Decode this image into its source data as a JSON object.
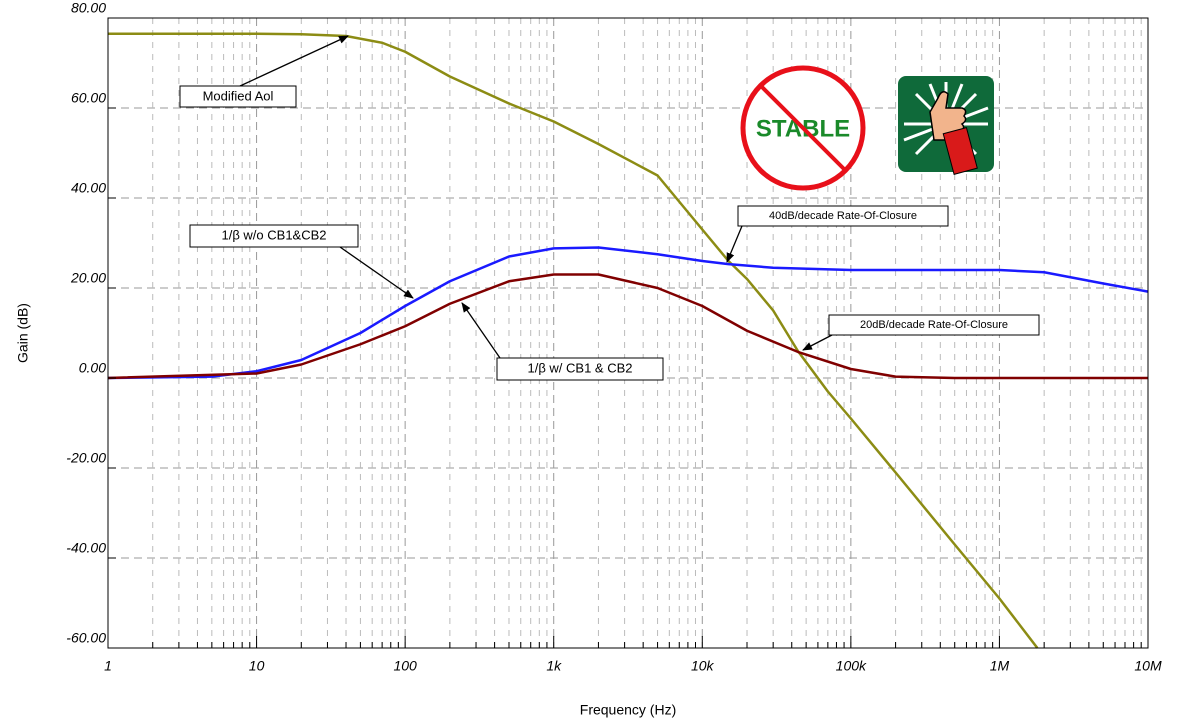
{
  "chart_data": {
    "type": "line",
    "y_label": "Gain (dB)",
    "x_label": "Frequency (Hz)",
    "log_x": true,
    "grid": true,
    "xlim": [
      1,
      10000000
    ],
    "xticks": [
      1,
      10,
      100,
      {
        "value": 1000,
        "label": "1k"
      },
      {
        "value": 10000,
        "label": "10k"
      },
      {
        "value": 100000,
        "label": "100k"
      },
      {
        "value": 1000000,
        "label": "1M"
      },
      {
        "value": 10000000,
        "label": "10M"
      }
    ],
    "ylim": [
      -60,
      80
    ],
    "yticks": [
      {
        "value": -60,
        "label": "-60.00"
      },
      {
        "value": -40,
        "label": "-40.00"
      },
      {
        "value": -20,
        "label": "-20.00"
      },
      {
        "value": 0,
        "label": "0.00"
      },
      {
        "value": 20,
        "label": "20.00"
      },
      {
        "value": 40,
        "label": "40.00"
      },
      {
        "value": 60,
        "label": "60.00"
      },
      {
        "value": 80,
        "label": "80.00"
      }
    ],
    "series": [
      {
        "name": "Modified Aol",
        "color": "#8c8c14",
        "x": [
          1,
          10,
          20,
          40,
          70,
          100,
          200,
          500,
          1000,
          2000,
          5000,
          10000,
          15000,
          20000,
          30000,
          44000,
          70000,
          100000,
          200000,
          500000,
          1000000,
          1800000
        ],
        "values": [
          76.5,
          76.5,
          76.4,
          76,
          74.5,
          72.5,
          67,
          61,
          57,
          52,
          45,
          33,
          26,
          22,
          15,
          6,
          -3,
          -9,
          -21,
          -37,
          -49,
          -60
        ]
      },
      {
        "name": "1/β w/o CB1&CB2",
        "color": "#1a1aff",
        "x": [
          1,
          5,
          10,
          20,
          50,
          100,
          200,
          500,
          1000,
          2000,
          5000,
          10000,
          15000,
          30000,
          100000,
          1000000,
          2000000,
          5000000,
          10000000
        ],
        "values": [
          0,
          0.3,
          1.5,
          4,
          10,
          16,
          21.5,
          27,
          28.8,
          29,
          27.5,
          26,
          25.3,
          24.5,
          24,
          24,
          23.5,
          21,
          19.2
        ]
      },
      {
        "name": "1/β w/ CB1 & CB2",
        "color": "#800000",
        "x": [
          1,
          10,
          20,
          50,
          100,
          200,
          500,
          1000,
          2000,
          5000,
          10000,
          20000,
          44000,
          100000,
          200000,
          500000,
          10000000
        ],
        "values": [
          0,
          1,
          3,
          7.5,
          11.5,
          16.5,
          21.5,
          23,
          23,
          20,
          16,
          10.5,
          5.8,
          2,
          0.3,
          0,
          0
        ]
      }
    ],
    "annotations": [
      "40dB/decade Rate-Of-Closure",
      "20dB/decade Rate-Of-Closure"
    ],
    "stamp": "STABLE"
  }
}
